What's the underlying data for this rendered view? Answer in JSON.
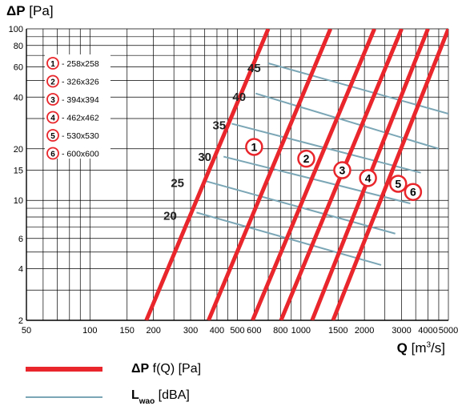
{
  "chart_data": {
    "type": "line",
    "xscale": "log",
    "yscale": "log",
    "xlim": [
      50,
      5000
    ],
    "ylim": [
      2,
      100
    ],
    "ylabel_bold": "ΔP",
    "ylabel_unit": "[Pa]",
    "xlabel_bold": "Q",
    "xlabel_unit_pre": "[m",
    "xlabel_unit_sup": "3",
    "xlabel_unit_post": "/s]",
    "x_ticks": [
      "50",
      "100",
      "150",
      "200",
      "300",
      "400",
      "500",
      "600",
      "800",
      "1000",
      "1500",
      "2000",
      "3000",
      "4000",
      "5000"
    ],
    "y_ticks": [
      "2",
      "4",
      "6",
      "10",
      "15",
      "20",
      "40",
      "60",
      "80",
      "100"
    ],
    "grid": true,
    "pressure_series": [
      {
        "name": "258x258",
        "id": "1",
        "x": [
          185,
          700
        ],
        "y": [
          2,
          100
        ],
        "label_at": [
          600,
          20.5
        ]
      },
      {
        "name": "326x326",
        "id": "2",
        "x": [
          365,
          1380
        ],
        "y": [
          2,
          100
        ],
        "label_at": [
          1060,
          17.5
        ]
      },
      {
        "name": "394x394",
        "id": "3",
        "x": [
          590,
          2230
        ],
        "y": [
          2,
          100
        ],
        "label_at": [
          1570,
          15
        ]
      },
      {
        "name": "462x462",
        "id": "4",
        "x": [
          805,
          3000
        ],
        "y": [
          2,
          100
        ],
        "label_at": [
          2080,
          13.5
        ]
      },
      {
        "name": "530x530",
        "id": "5",
        "x": [
          1130,
          4000
        ],
        "y": [
          2,
          100
        ],
        "label_at": [
          2890,
          12.5
        ]
      },
      {
        "name": "600x600",
        "id": "6",
        "x": [
          1420,
          5000
        ],
        "y": [
          2,
          100
        ],
        "label_at": [
          3400,
          11.2
        ]
      }
    ],
    "sound_lines": [
      {
        "level": "20",
        "x": [
          320,
          2400
        ],
        "y": [
          8.5,
          4.2
        ],
        "label_at": [
          240,
          7.7
        ]
      },
      {
        "level": "25",
        "x": [
          350,
          2800
        ],
        "y": [
          13,
          6.4
        ],
        "label_at": [
          260,
          12
        ]
      },
      {
        "level": "30",
        "x": [
          430,
          3300
        ],
        "y": [
          18,
          9.6
        ],
        "label_at": [
          350,
          17
        ]
      },
      {
        "level": "35",
        "x": [
          470,
          3700
        ],
        "y": [
          28,
          14.5
        ],
        "label_at": [
          410,
          26
        ]
      },
      {
        "level": "40",
        "x": [
          610,
          4500
        ],
        "y": [
          42,
          20
        ],
        "label_at": [
          510,
          38
        ]
      },
      {
        "level": "45",
        "x": [
          700,
          5000
        ],
        "y": [
          63,
          32
        ],
        "label_at": [
          600,
          56
        ]
      }
    ],
    "legend": {
      "position": "top-left",
      "items": [
        {
          "id": "1",
          "text": "- 258x258"
        },
        {
          "id": "2",
          "text": "- 326x326"
        },
        {
          "id": "3",
          "text": "- 394x394"
        },
        {
          "id": "4",
          "text": "- 462x462"
        },
        {
          "id": "5",
          "text": "- 530x530"
        },
        {
          "id": "6",
          "text": "- 600x600"
        }
      ]
    },
    "colors": {
      "pressure": "#e8262b",
      "sound": "#7aa6b5",
      "grid": "#000000"
    }
  },
  "footer_legend": {
    "pressure_bold": "ΔP",
    "pressure_text": " f(Q) [Pa]",
    "sound_bold": "L",
    "sound_sub": "wao",
    "sound_text": " [dBA]"
  }
}
